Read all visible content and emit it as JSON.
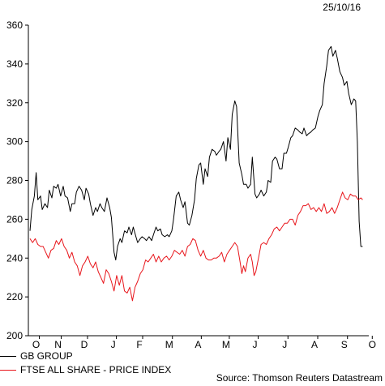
{
  "date_stamp": "25/10/16",
  "source": "Source: Thomson Reuters Datastream",
  "colors": {
    "gb_group": "#000000",
    "ftse": "#e8151b",
    "axis": "#000000"
  },
  "chart_data": {
    "type": "line",
    "title": "",
    "xlabel": "",
    "ylabel": "",
    "ylim": [
      200,
      360
    ],
    "yticks": [
      200,
      220,
      240,
      260,
      280,
      300,
      320,
      340,
      360
    ],
    "xlim": [
      0,
      390
    ],
    "x_tick_labels": [
      {
        "label": "O",
        "x": 7
      },
      {
        "label": "N",
        "x": 32
      },
      {
        "label": "D",
        "x": 62
      },
      {
        "label": "J",
        "x": 95
      },
      {
        "label": "F",
        "x": 125
      },
      {
        "label": "M",
        "x": 159
      },
      {
        "label": "A",
        "x": 192
      },
      {
        "label": "M",
        "x": 224
      },
      {
        "label": "J",
        "x": 257
      },
      {
        "label": "J",
        "x": 291
      },
      {
        "label": "A",
        "x": 325
      },
      {
        "label": "S",
        "x": 359
      },
      {
        "label": "O",
        "x": 391
      }
    ],
    "grid": false,
    "legend_position": "bottom-left",
    "series": [
      {
        "name": "GB GROUP",
        "color": "#000000",
        "points": [
          [
            0,
            254
          ],
          [
            2,
            265
          ],
          [
            5,
            272
          ],
          [
            7,
            284
          ],
          [
            9,
            270
          ],
          [
            12,
            272
          ],
          [
            14,
            265
          ],
          [
            17,
            268
          ],
          [
            20,
            266
          ],
          [
            22,
            275
          ],
          [
            25,
            271
          ],
          [
            27,
            277
          ],
          [
            30,
            276
          ],
          [
            32,
            278
          ],
          [
            35,
            272
          ],
          [
            38,
            277
          ],
          [
            40,
            272
          ],
          [
            43,
            271
          ],
          [
            46,
            264
          ],
          [
            48,
            268
          ],
          [
            51,
            268
          ],
          [
            53,
            274
          ],
          [
            56,
            277
          ],
          [
            59,
            275
          ],
          [
            62,
            270
          ],
          [
            64,
            276
          ],
          [
            67,
            273
          ],
          [
            69,
            268
          ],
          [
            72,
            262
          ],
          [
            75,
            266
          ],
          [
            77,
            264
          ],
          [
            80,
            268
          ],
          [
            82,
            266
          ],
          [
            85,
            264
          ],
          [
            88,
            271
          ],
          [
            91,
            266
          ],
          [
            93,
            261
          ],
          [
            96,
            243
          ],
          [
            98,
            239
          ],
          [
            100,
            246
          ],
          [
            103,
            250
          ],
          [
            105,
            248
          ],
          [
            108,
            254
          ],
          [
            111,
            253
          ],
          [
            113,
            256
          ],
          [
            116,
            252
          ],
          [
            118,
            256
          ],
          [
            121,
            251
          ],
          [
            123,
            248
          ],
          [
            126,
            250
          ],
          [
            128,
            251
          ],
          [
            131,
            250
          ],
          [
            133,
            249
          ],
          [
            136,
            251
          ],
          [
            139,
            249
          ],
          [
            141,
            252
          ],
          [
            144,
            256
          ],
          [
            146,
            254
          ],
          [
            149,
            255
          ],
          [
            151,
            252
          ],
          [
            154,
            251
          ],
          [
            157,
            252
          ],
          [
            159,
            251
          ],
          [
            162,
            254
          ],
          [
            164,
            260
          ],
          [
            167,
            272
          ],
          [
            170,
            274
          ],
          [
            172,
            270
          ],
          [
            175,
            266
          ],
          [
            177,
            269
          ],
          [
            180,
            258
          ],
          [
            182,
            257
          ],
          [
            185,
            262
          ],
          [
            188,
            270
          ],
          [
            190,
            281
          ],
          [
            193,
            288
          ],
          [
            195,
            289
          ],
          [
            198,
            278
          ],
          [
            200,
            286
          ],
          [
            203,
            282
          ],
          [
            205,
            292
          ],
          [
            208,
            296
          ],
          [
            211,
            295
          ],
          [
            213,
            293
          ],
          [
            216,
            295
          ],
          [
            218,
            296
          ],
          [
            221,
            300
          ],
          [
            224,
            290
          ],
          [
            226,
            302
          ],
          [
            229,
            296
          ],
          [
            231,
            314
          ],
          [
            234,
            321
          ],
          [
            236,
            318
          ],
          [
            239,
            289
          ],
          [
            242,
            283
          ],
          [
            244,
            278
          ],
          [
            247,
            278
          ],
          [
            249,
            276
          ],
          [
            252,
            278
          ],
          [
            254,
            292
          ],
          [
            257,
            273
          ],
          [
            259,
            271
          ],
          [
            262,
            273
          ],
          [
            264,
            275
          ],
          [
            267,
            272
          ],
          [
            270,
            274
          ],
          [
            272,
            280
          ],
          [
            275,
            279
          ],
          [
            277,
            290
          ],
          [
            280,
            292
          ],
          [
            282,
            291
          ],
          [
            285,
            286
          ],
          [
            288,
            286
          ],
          [
            290,
            294
          ],
          [
            293,
            294
          ],
          [
            295,
            297
          ],
          [
            298,
            302
          ],
          [
            300,
            303
          ],
          [
            303,
            307
          ],
          [
            306,
            306
          ],
          [
            308,
            305
          ],
          [
            311,
            304
          ],
          [
            313,
            307
          ],
          [
            316,
            303
          ],
          [
            318,
            304
          ],
          [
            321,
            305
          ],
          [
            323,
            306
          ],
          [
            326,
            307
          ],
          [
            329,
            313
          ],
          [
            331,
            316
          ],
          [
            334,
            319
          ],
          [
            336,
            330
          ],
          [
            339,
            339
          ],
          [
            341,
            347
          ],
          [
            344,
            349
          ],
          [
            346,
            344
          ],
          [
            349,
            347
          ],
          [
            351,
            343
          ],
          [
            354,
            336
          ],
          [
            357,
            333
          ],
          [
            359,
            329
          ],
          [
            362,
            331
          ],
          [
            364,
            325
          ],
          [
            367,
            319
          ],
          [
            370,
            322
          ],
          [
            372,
            321
          ],
          [
            374,
            300
          ],
          [
            376,
            259
          ],
          [
            378,
            246
          ],
          [
            380,
            246
          ]
        ]
      },
      {
        "name": "FTSE ALL SHARE - PRICE INDEX",
        "color": "#e8151b",
        "points": [
          [
            0,
            250
          ],
          [
            3,
            248
          ],
          [
            6,
            250
          ],
          [
            9,
            247
          ],
          [
            12,
            246
          ],
          [
            15,
            246
          ],
          [
            18,
            243
          ],
          [
            21,
            240
          ],
          [
            24,
            244
          ],
          [
            27,
            245
          ],
          [
            30,
            249
          ],
          [
            33,
            247
          ],
          [
            36,
            250
          ],
          [
            39,
            246
          ],
          [
            42,
            244
          ],
          [
            45,
            240
          ],
          [
            48,
            243
          ],
          [
            51,
            238
          ],
          [
            54,
            236
          ],
          [
            57,
            231
          ],
          [
            60,
            236
          ],
          [
            63,
            238
          ],
          [
            66,
            241
          ],
          [
            69,
            237
          ],
          [
            72,
            235
          ],
          [
            75,
            238
          ],
          [
            78,
            233
          ],
          [
            81,
            230
          ],
          [
            84,
            227
          ],
          [
            87,
            234
          ],
          [
            90,
            232
          ],
          [
            93,
            228
          ],
          [
            96,
            223
          ],
          [
            99,
            231
          ],
          [
            102,
            226
          ],
          [
            105,
            231
          ],
          [
            108,
            223
          ],
          [
            111,
            222
          ],
          [
            114,
            225
          ],
          [
            117,
            218
          ],
          [
            120,
            225
          ],
          [
            123,
            228
          ],
          [
            126,
            232
          ],
          [
            129,
            234
          ],
          [
            132,
            239
          ],
          [
            135,
            238
          ],
          [
            138,
            240
          ],
          [
            141,
            242
          ],
          [
            144,
            238
          ],
          [
            147,
            241
          ],
          [
            150,
            238
          ],
          [
            153,
            240
          ],
          [
            156,
            241
          ],
          [
            159,
            239
          ],
          [
            162,
            241
          ],
          [
            165,
            244
          ],
          [
            168,
            243
          ],
          [
            171,
            242
          ],
          [
            174,
            244
          ],
          [
            177,
            241
          ],
          [
            180,
            246
          ],
          [
            183,
            247
          ],
          [
            186,
            250
          ],
          [
            189,
            249
          ],
          [
            192,
            244
          ],
          [
            195,
            241
          ],
          [
            198,
            244
          ],
          [
            201,
            240
          ],
          [
            204,
            239
          ],
          [
            207,
            239
          ],
          [
            210,
            240
          ],
          [
            213,
            240
          ],
          [
            216,
            241
          ],
          [
            219,
            243
          ],
          [
            222,
            238
          ],
          [
            225,
            242
          ],
          [
            228,
            244
          ],
          [
            231,
            246
          ],
          [
            234,
            248
          ],
          [
            237,
            246
          ],
          [
            240,
            238
          ],
          [
            242,
            232
          ],
          [
            244,
            236
          ],
          [
            246,
            233
          ],
          [
            249,
            240
          ],
          [
            252,
            242
          ],
          [
            254,
            238
          ],
          [
            256,
            231
          ],
          [
            258,
            233
          ],
          [
            261,
            240
          ],
          [
            264,
            247
          ],
          [
            267,
            248
          ],
          [
            270,
            247
          ],
          [
            273,
            250
          ],
          [
            276,
            252
          ],
          [
            279,
            255
          ],
          [
            282,
            256
          ],
          [
            285,
            254
          ],
          [
            288,
            256
          ],
          [
            291,
            258
          ],
          [
            294,
            258
          ],
          [
            297,
            260
          ],
          [
            300,
            260
          ],
          [
            303,
            257
          ],
          [
            306,
            262
          ],
          [
            309,
            264
          ],
          [
            312,
            267
          ],
          [
            315,
            267
          ],
          [
            318,
            268
          ],
          [
            321,
            265
          ],
          [
            324,
            266
          ],
          [
            327,
            264
          ],
          [
            330,
            266
          ],
          [
            333,
            264
          ],
          [
            336,
            268
          ],
          [
            339,
            263
          ],
          [
            342,
            264
          ],
          [
            345,
            266
          ],
          [
            348,
            263
          ],
          [
            351,
            266
          ],
          [
            354,
            270
          ],
          [
            357,
            274
          ],
          [
            360,
            271
          ],
          [
            363,
            270
          ],
          [
            366,
            273
          ],
          [
            369,
            272
          ],
          [
            372,
            272
          ],
          [
            375,
            270
          ],
          [
            378,
            271
          ],
          [
            380,
            270
          ]
        ]
      }
    ]
  }
}
